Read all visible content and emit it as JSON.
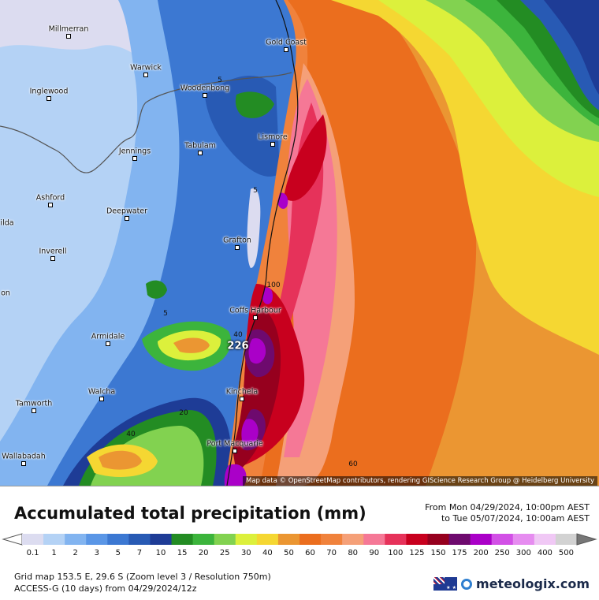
{
  "map": {
    "places": [
      {
        "name": "Millmerran",
        "id": "millmerran"
      },
      {
        "name": "Gold Coast",
        "id": "gold-coast"
      },
      {
        "name": "Warwick",
        "id": "warwick"
      },
      {
        "name": "Inglewood",
        "id": "inglewood"
      },
      {
        "name": "Woodenbong",
        "id": "woodenbong"
      },
      {
        "name": "Lismore",
        "id": "lismore"
      },
      {
        "name": "Jennings",
        "id": "jennings"
      },
      {
        "name": "Tabulam",
        "id": "tabulam"
      },
      {
        "name": "Ashford",
        "id": "ashford"
      },
      {
        "name": "Deepwater",
        "id": "deepwater"
      },
      {
        "name": "Grafton",
        "id": "grafton"
      },
      {
        "name": "Inverell",
        "id": "inverell"
      },
      {
        "name": "Coffs Harbour",
        "id": "coffs-harbour"
      },
      {
        "name": "Armidale",
        "id": "armidale"
      },
      {
        "name": "Kinchela",
        "id": "kinchela"
      },
      {
        "name": "Walcha",
        "id": "walcha"
      },
      {
        "name": "Tamworth",
        "id": "tamworth"
      },
      {
        "name": "Port Macquarie",
        "id": "port-macquarie"
      },
      {
        "name": "Wallabadah",
        "id": "wallabadah"
      },
      {
        "name": "ilda",
        "id": "ilda-partial"
      },
      {
        "name": "on",
        "id": "on-partial"
      }
    ],
    "contour_labels": [
      "5",
      "5",
      "5",
      "100",
      "40",
      "20",
      "40",
      "60"
    ],
    "peak_value": "226",
    "attribution": "Map data © OpenStreetMap contributors, rendering GIScience Research Group @ Heidelberg University"
  },
  "footer": {
    "title": "Accumulated total precipitation (mm)",
    "period_from": "From Mon 04/29/2024, 10:00pm AEST",
    "period_to": "to Tue 05/07/2024, 10:00am AEST",
    "grid_info": "Grid map 153.5 E, 29.6 S (Zoom level 3 / Resolution 750m)",
    "model_info": "ACCESS-G (10 days)  from  04/29/2024/12z",
    "brand": "meteologix.com"
  },
  "legend": {
    "unit": "mm",
    "values": [
      "0.1",
      "1",
      "2",
      "3",
      "5",
      "7",
      "10",
      "15",
      "20",
      "25",
      "30",
      "40",
      "50",
      "60",
      "70",
      "80",
      "90",
      "100",
      "125",
      "150",
      "175",
      "200",
      "250",
      "300",
      "400",
      "500"
    ],
    "colors": [
      "#dcdcf0",
      "#b4d2f5",
      "#82b4f0",
      "#5a96e6",
      "#3c78d2",
      "#285ab4",
      "#1e3c96",
      "#238c23",
      "#3cb43c",
      "#82d250",
      "#dcf03c",
      "#f5d732",
      "#eb9632",
      "#eb6e1e",
      "#f0823c",
      "#f5a078",
      "#f57896",
      "#e6325a",
      "#c8001e",
      "#96001e",
      "#6e0a6e",
      "#aa00c8",
      "#d250e6",
      "#e68cf0",
      "#f0c8f5",
      "#d2d2d2"
    ]
  }
}
